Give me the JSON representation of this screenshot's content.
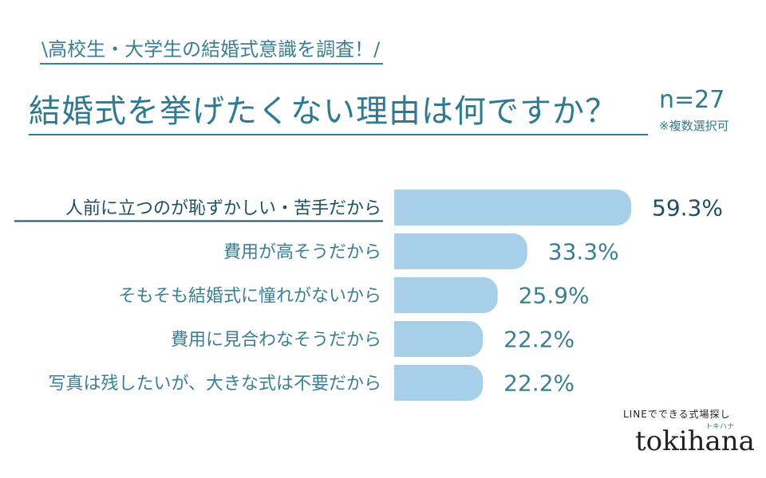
{
  "subtitle": "\\高校生・大学生の結婚式意識を調査！/",
  "title": "結婚式を挙げたくない理由は何ですか？",
  "sample_size": "n=27",
  "note": "※複数選択可",
  "brand": {
    "tagline": "LINEでできる式場探し",
    "kana": "トキハナ",
    "name": "tokihana"
  },
  "colors": {
    "bar": "#a7cfe7",
    "accent_text": "#3c7f93",
    "highlight_text": "#1f4f63"
  },
  "chart_data": {
    "type": "bar",
    "orientation": "horizontal",
    "categories": [
      "人前に立つのが恥ずかしい・苦手だから",
      "費用が高そうだから",
      "そもそも結婚式に憧れがないから",
      "費用に見合わなそうだから",
      "写真は残したいが、大きな式は不要だから"
    ],
    "values": [
      59.3,
      33.3,
      25.9,
      22.2,
      22.2
    ],
    "value_labels": [
      "59.3%",
      "33.3%",
      "25.9%",
      "22.2%",
      "22.2%"
    ],
    "unit": "%",
    "xlim": [
      0,
      59.3
    ],
    "highlight_index": 0,
    "grid": false,
    "legend": "none"
  }
}
